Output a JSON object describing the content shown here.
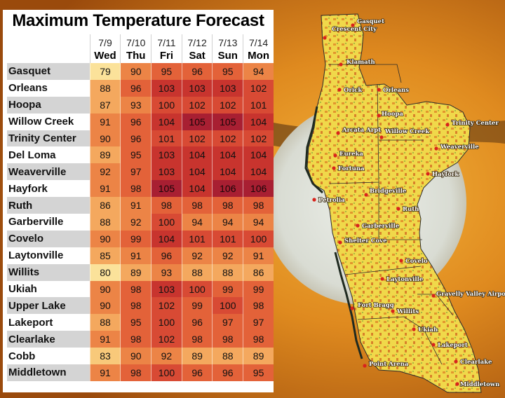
{
  "chart_data": {
    "type": "table",
    "title": "Maximum Temperature Forecast",
    "columns": [
      {
        "date": "7/9",
        "day": "Wed"
      },
      {
        "date": "7/10",
        "day": "Thu"
      },
      {
        "date": "7/11",
        "day": "Fri"
      },
      {
        "date": "7/12",
        "day": "Sat"
      },
      {
        "date": "7/13",
        "day": "Sun"
      },
      {
        "date": "7/14",
        "day": "Mon"
      }
    ],
    "rows": [
      {
        "city": "Gasquet",
        "values": [
          79,
          90,
          95,
          96,
          95,
          94
        ]
      },
      {
        "city": "Orleans",
        "values": [
          88,
          96,
          103,
          103,
          103,
          102
        ]
      },
      {
        "city": "Hoopa",
        "values": [
          87,
          93,
          100,
          102,
          102,
          101
        ]
      },
      {
        "city": "Willow Creek",
        "values": [
          91,
          96,
          104,
          105,
          105,
          104
        ]
      },
      {
        "city": "Trinity Center",
        "values": [
          90,
          96,
          101,
          102,
          102,
          102
        ]
      },
      {
        "city": "Del Loma",
        "values": [
          89,
          95,
          103,
          104,
          104,
          104
        ]
      },
      {
        "city": "Weaverville",
        "values": [
          92,
          97,
          103,
          104,
          104,
          104
        ]
      },
      {
        "city": "Hayfork",
        "values": [
          91,
          98,
          105,
          104,
          106,
          106
        ]
      },
      {
        "city": "Ruth",
        "values": [
          86,
          91,
          98,
          98,
          98,
          98
        ]
      },
      {
        "city": "Garberville",
        "values": [
          88,
          92,
          100,
          94,
          94,
          94
        ]
      },
      {
        "city": "Covelo",
        "values": [
          90,
          99,
          104,
          101,
          101,
          100
        ]
      },
      {
        "city": "Laytonville",
        "values": [
          85,
          91,
          96,
          92,
          92,
          91
        ]
      },
      {
        "city": "Willits",
        "values": [
          80,
          89,
          93,
          88,
          88,
          86
        ]
      },
      {
        "city": "Ukiah",
        "values": [
          90,
          98,
          103,
          100,
          99,
          99
        ]
      },
      {
        "city": "Upper Lake",
        "values": [
          90,
          98,
          102,
          99,
          100,
          98
        ]
      },
      {
        "city": "Lakeport",
        "values": [
          88,
          95,
          100,
          96,
          97,
          97
        ]
      },
      {
        "city": "Clearlake",
        "values": [
          91,
          98,
          102,
          98,
          98,
          98
        ]
      },
      {
        "city": "Cobb",
        "values": [
          83,
          90,
          92,
          89,
          88,
          89
        ]
      },
      {
        "city": "Middletown",
        "values": [
          91,
          98,
          100,
          96,
          96,
          95
        ]
      }
    ],
    "color_scale": [
      {
        "max": 80,
        "color": "#fbe29a"
      },
      {
        "max": 84,
        "color": "#f8c97a"
      },
      {
        "max": 89,
        "color": "#f4a85e"
      },
      {
        "max": 94,
        "color": "#ec8446"
      },
      {
        "max": 99,
        "color": "#e36239"
      },
      {
        "max": 102,
        "color": "#d84a34"
      },
      {
        "max": 104,
        "color": "#c8342e"
      },
      {
        "max": 106,
        "color": "#a81f32"
      }
    ]
  },
  "map": {
    "places": [
      {
        "name": "Gasquet"
      },
      {
        "name": "Crescent City"
      },
      {
        "name": "Klamath"
      },
      {
        "name": "Orick"
      },
      {
        "name": "Orleans"
      },
      {
        "name": "Hoopa"
      },
      {
        "name": "Arcata Arpt"
      },
      {
        "name": "Willow Creek"
      },
      {
        "name": "Trinity Center"
      },
      {
        "name": "Eureka"
      },
      {
        "name": "Weaverville"
      },
      {
        "name": "Fortuna"
      },
      {
        "name": "Hayfork"
      },
      {
        "name": "Bridgeville"
      },
      {
        "name": "Petrolia"
      },
      {
        "name": "Ruth"
      },
      {
        "name": "Garberville"
      },
      {
        "name": "Shelter Cove"
      },
      {
        "name": "Covelo"
      },
      {
        "name": "Laytonville"
      },
      {
        "name": "Gravelly Valley Airport"
      },
      {
        "name": "Fort Bragg"
      },
      {
        "name": "Willits"
      },
      {
        "name": "Ukiah"
      },
      {
        "name": "Lakeport"
      },
      {
        "name": "Clearlake"
      },
      {
        "name": "Point Arena"
      },
      {
        "name": "Middletown"
      }
    ]
  }
}
